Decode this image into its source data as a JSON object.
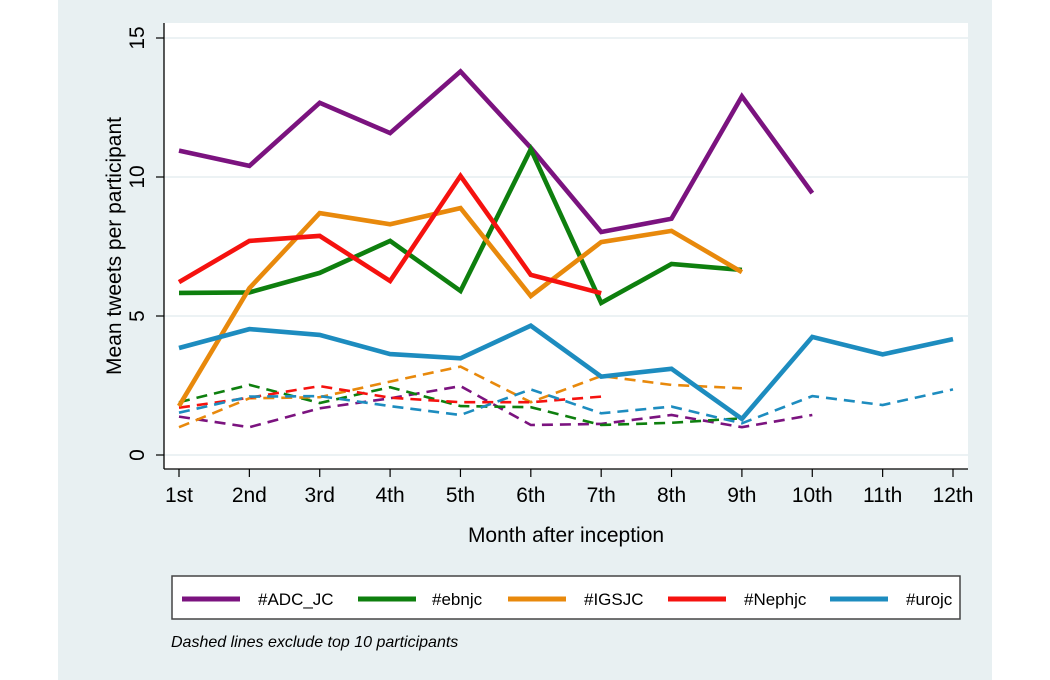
{
  "chart_data": {
    "type": "line",
    "title": "",
    "xlabel": "Month after inception",
    "ylabel": "Mean tweets per participant",
    "categories": [
      "1st",
      "2nd",
      "3rd",
      "4th",
      "5th",
      "6th",
      "7th",
      "8th",
      "9th",
      "10th",
      "11th",
      "12th"
    ],
    "yticks": [
      0,
      5,
      10,
      15
    ],
    "ylim": [
      0,
      15
    ],
    "grid": true,
    "legend_position": "bottom",
    "note": "Dashed lines exclude top 10 participants",
    "series": [
      {
        "name": "#ADC_JC",
        "color": "#7b137f",
        "style": "solid",
        "values": [
          10.95,
          10.4,
          12.67,
          11.58,
          13.8,
          11.05,
          8.02,
          8.5,
          12.9,
          9.42,
          null,
          null
        ]
      },
      {
        "name": "#ebnjc",
        "color": "#0e7f0e",
        "style": "solid",
        "values": [
          5.83,
          5.85,
          6.55,
          7.7,
          5.9,
          11.0,
          5.47,
          6.87,
          6.66,
          null,
          null,
          null
        ]
      },
      {
        "name": "#IGSJC",
        "color": "#e8890c",
        "style": "solid",
        "values": [
          1.76,
          6.0,
          8.7,
          8.3,
          8.88,
          5.72,
          7.66,
          8.06,
          6.58,
          null,
          null,
          null
        ]
      },
      {
        "name": "#Nephjc",
        "color": "#f5120f",
        "style": "solid",
        "values": [
          6.22,
          7.7,
          7.88,
          6.26,
          10.04,
          6.48,
          5.82,
          null,
          null,
          null,
          null,
          null
        ]
      },
      {
        "name": "#urojc",
        "color": "#1d8cbf",
        "style": "solid",
        "values": [
          3.85,
          4.53,
          4.32,
          3.63,
          3.48,
          4.65,
          2.82,
          3.1,
          1.3,
          4.25,
          3.62,
          4.17
        ]
      },
      {
        "name": "#ADC_JC (excl. top 10)",
        "color": "#7b137f",
        "style": "dashed",
        "values": [
          1.38,
          1.0,
          1.68,
          2.04,
          2.48,
          1.08,
          1.12,
          1.44,
          1.0,
          1.44,
          null,
          null
        ]
      },
      {
        "name": "#ebnjc (excl. top 10)",
        "color": "#0e7f0e",
        "style": "dashed",
        "values": [
          1.9,
          2.52,
          1.87,
          2.44,
          1.76,
          1.72,
          1.08,
          1.16,
          1.32,
          null,
          null,
          null
        ]
      },
      {
        "name": "#IGSJC (excl. top 10)",
        "color": "#e8890c",
        "style": "dashed",
        "values": [
          1.0,
          2.04,
          2.08,
          2.64,
          3.18,
          1.9,
          2.84,
          2.52,
          2.4,
          null,
          null,
          null
        ]
      },
      {
        "name": "#Nephjc (excl. top 10)",
        "color": "#f5120f",
        "style": "dashed",
        "values": [
          1.7,
          2.06,
          2.48,
          2.06,
          1.9,
          1.9,
          2.1,
          null,
          null,
          null,
          null,
          null
        ]
      },
      {
        "name": "#urojc (excl. top 10)",
        "color": "#1d8cbf",
        "style": "dashed",
        "values": [
          1.52,
          2.1,
          2.12,
          1.76,
          1.44,
          2.36,
          1.5,
          1.74,
          1.14,
          2.12,
          1.8,
          2.36
        ]
      }
    ],
    "legend": [
      {
        "label": "#ADC_JC",
        "color": "#7b137f"
      },
      {
        "label": "#ebnjc",
        "color": "#0e7f0e"
      },
      {
        "label": "#IGSJC",
        "color": "#e8890c"
      },
      {
        "label": "#Nephjc",
        "color": "#f5120f"
      },
      {
        "label": "#urojc",
        "color": "#1d8cbf"
      }
    ]
  },
  "colors": {
    "background": "#e8f0f2",
    "plot_background": "#ffffff",
    "gridline": "#e6eef0"
  }
}
